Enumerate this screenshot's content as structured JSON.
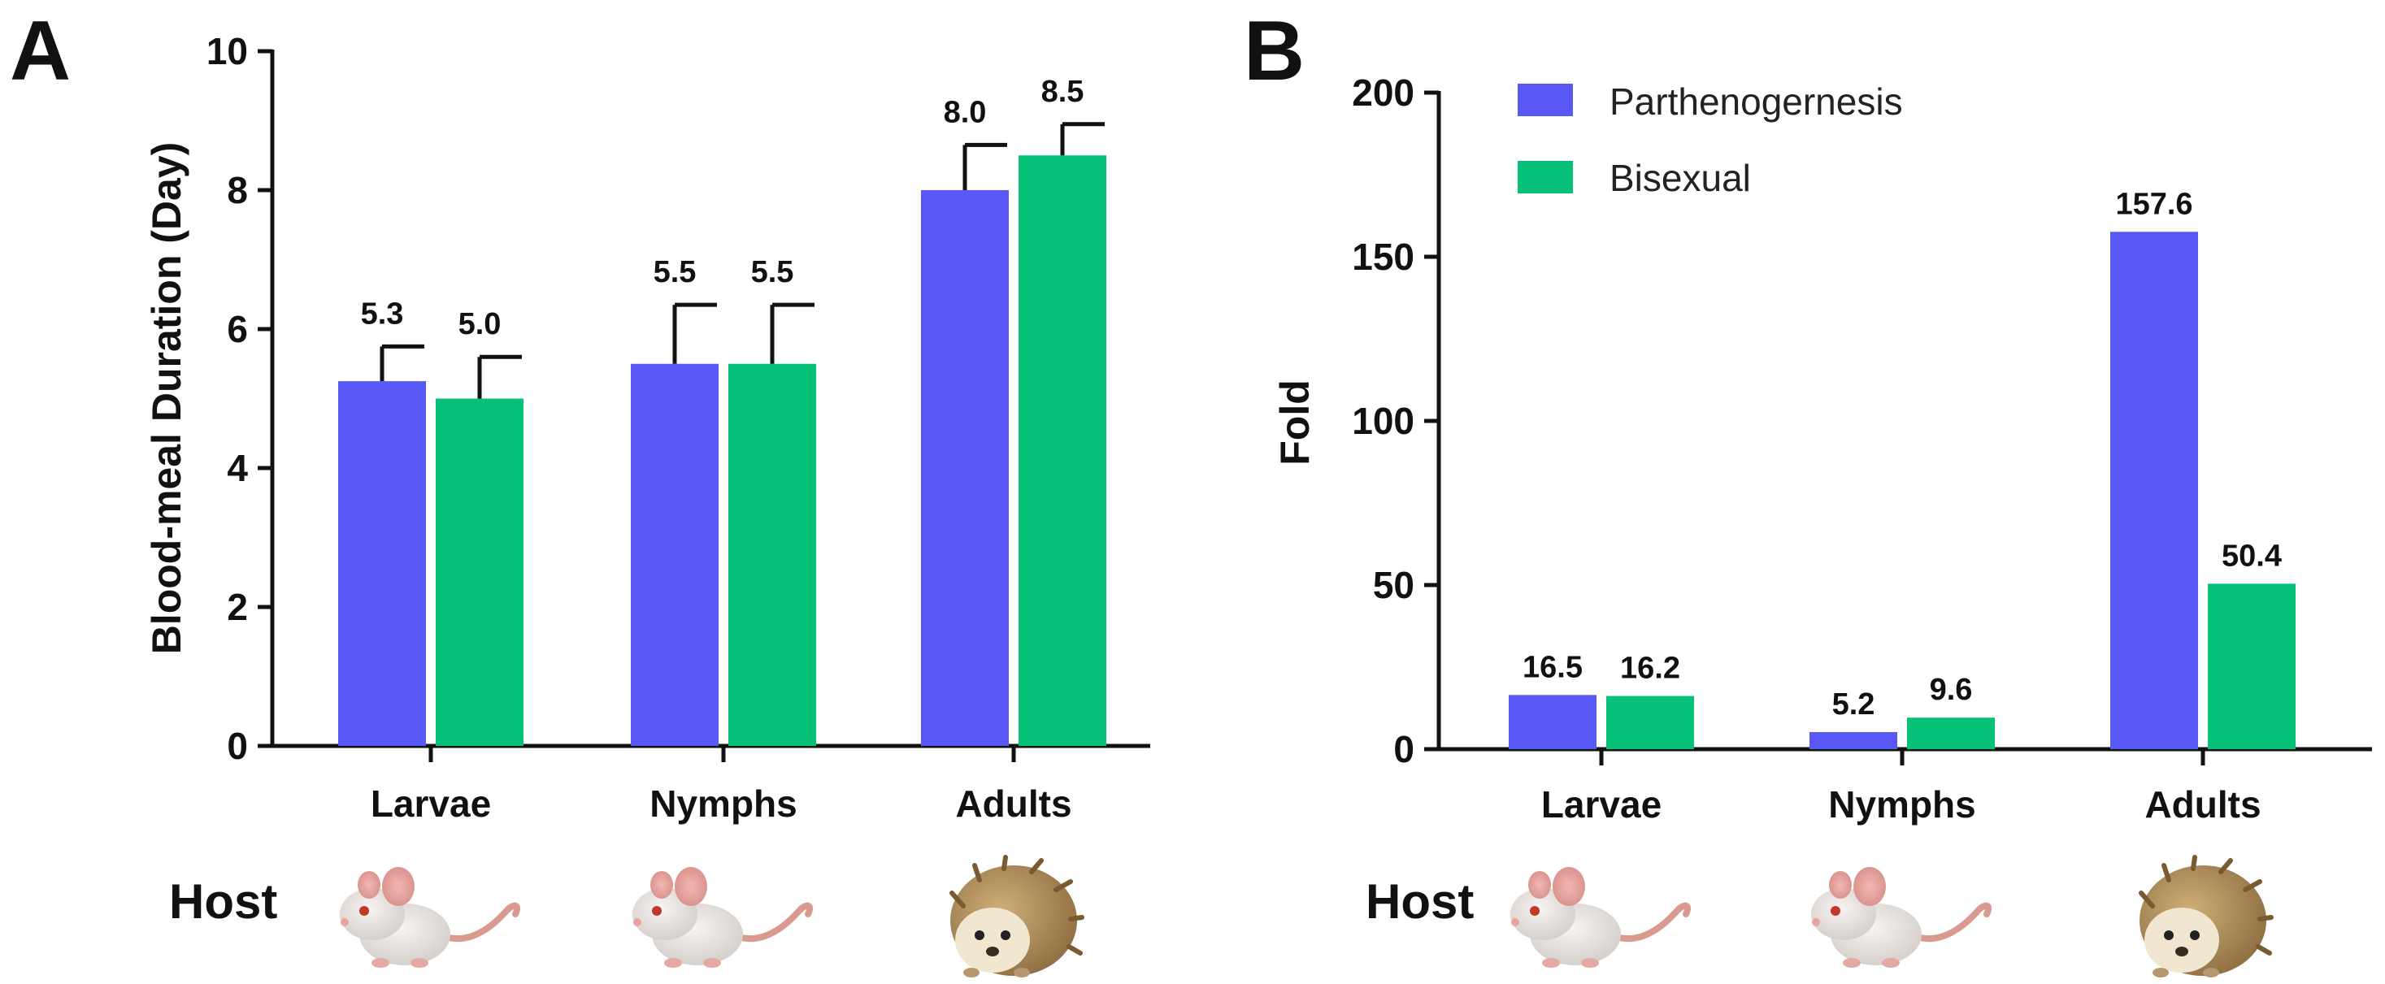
{
  "colors": {
    "parthenogenesis": "#5858f5",
    "bisexual": "#07c178",
    "axis": "#111111"
  },
  "host_label": "Host",
  "hosts": [
    {
      "category": "Larvae",
      "icon": "mouse-icon"
    },
    {
      "category": "Nymphs",
      "icon": "mouse-icon"
    },
    {
      "category": "Adults",
      "icon": "hedgehog-icon"
    }
  ],
  "chart_data": [
    {
      "panel": "A",
      "type": "bar",
      "title": "",
      "xlabel": "",
      "ylabel": "Blood-meal Duration (Day)",
      "ylim": [
        0,
        10
      ],
      "yticks": [
        0,
        2,
        4,
        6,
        8,
        10
      ],
      "categories": [
        "Larvae",
        "Nymphs",
        "Adults"
      ],
      "series": [
        {
          "name": "Parthenogernesis",
          "values": [
            5.25,
            5.5,
            8.0
          ],
          "errors": [
            0.5,
            0.85,
            0.65
          ],
          "labels": [
            "5.3",
            "5.5",
            "8.0"
          ]
        },
        {
          "name": "Bisexual",
          "values": [
            5.0,
            5.5,
            8.5
          ],
          "errors": [
            0.6,
            0.85,
            0.45
          ],
          "labels": [
            "5.0",
            "5.5",
            "8.5"
          ]
        }
      ]
    },
    {
      "panel": "B",
      "type": "bar",
      "title": "",
      "xlabel": "",
      "ylabel": "Fold",
      "ylim": [
        0,
        200
      ],
      "yticks": [
        0,
        50,
        100,
        150,
        200
      ],
      "categories": [
        "Larvae",
        "Nymphs",
        "Adults"
      ],
      "legend": {
        "placement": "top-left",
        "entries": [
          "Parthenogernesis",
          "Bisexual"
        ]
      },
      "series": [
        {
          "name": "Parthenogernesis",
          "values": [
            16.5,
            5.2,
            157.6
          ],
          "labels": [
            "16.5",
            "5.2",
            "157.6"
          ]
        },
        {
          "name": "Bisexual",
          "values": [
            16.2,
            9.6,
            50.4
          ],
          "labels": [
            "16.2",
            "9.6",
            "50.4"
          ]
        }
      ]
    }
  ]
}
